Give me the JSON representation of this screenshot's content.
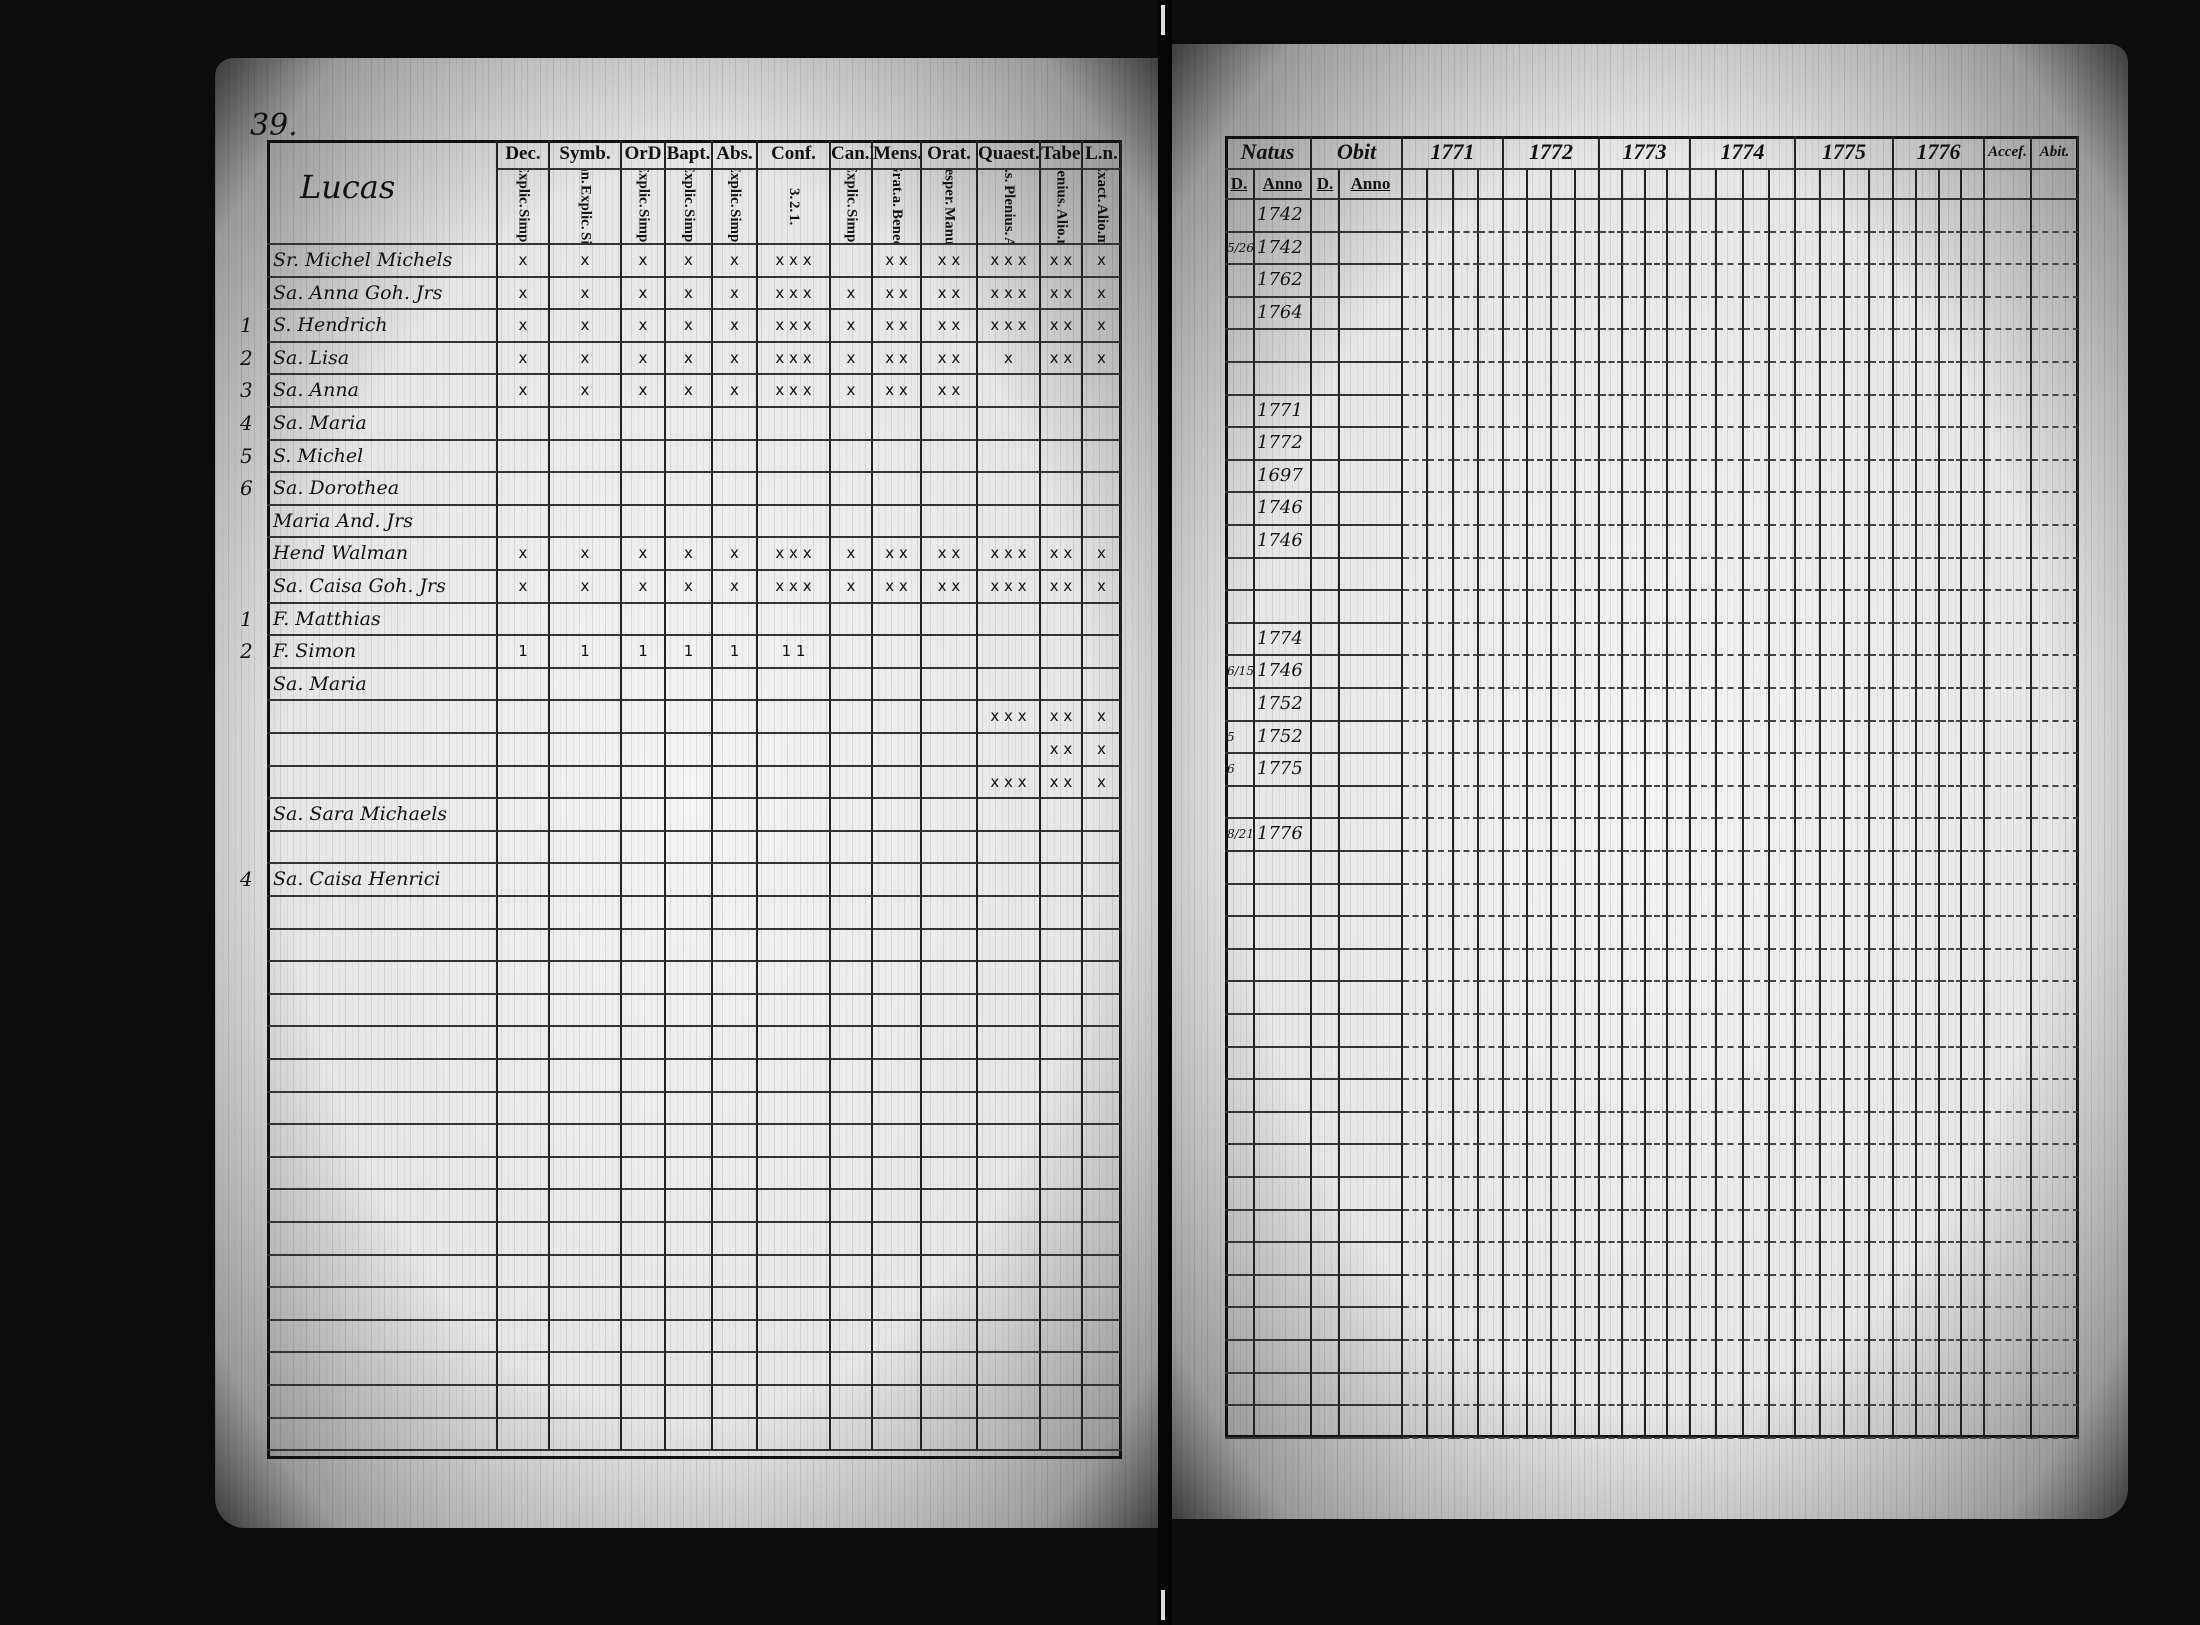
{
  "left_page": {
    "page_number": "39.",
    "title": "Lucas",
    "columns": [
      {
        "head": "Dec.",
        "sub": [
          "Explic.",
          "Simpl."
        ]
      },
      {
        "head": "Symb.",
        "sub": [
          "Athan.",
          "Explic.",
          "Simpl."
        ]
      },
      {
        "head": "OrD",
        "sub": [
          "Explic.",
          "Simpl."
        ]
      },
      {
        "head": "Bapt.",
        "sub": [
          "Explic.",
          "Simpl."
        ]
      },
      {
        "head": "Abs.",
        "sub": [
          "Explic.",
          "Simpl."
        ]
      },
      {
        "head": "Conf.",
        "sub": [
          "3.",
          "2.",
          "1."
        ]
      },
      {
        "head": "Can.D",
        "sub": [
          "Explic.",
          "Simpl."
        ]
      },
      {
        "head": "Mens.",
        "sub": [
          "Grat.a.",
          "Bened."
        ]
      },
      {
        "head": "Orat.",
        "sub": [
          "Vesper.",
          "Manut."
        ]
      },
      {
        "head": "Quaest.",
        "sub": [
          "Dictas.s.",
          "Plenius.",
          "Alio.m."
        ]
      },
      {
        "head": "Tabe.",
        "sub": [
          "Plenius.",
          "Alio.m."
        ]
      },
      {
        "head": "L.n.",
        "sub": [
          "Exact.",
          "Alio.m."
        ]
      }
    ],
    "rows": [
      {
        "no": "",
        "name": "Sr. Michel Michels",
        "marks": [
          "x",
          "x",
          "x",
          "x",
          "x",
          "x x x",
          "",
          "x x",
          "x x",
          "x x x",
          "x x",
          "x"
        ]
      },
      {
        "no": "",
        "name": "Sa. Anna Goh. Jrs",
        "marks": [
          "x",
          "x",
          "x",
          "x",
          "x",
          "x x x",
          "x",
          "x x",
          "x x",
          "x x x",
          "x x",
          "x"
        ]
      },
      {
        "no": "1",
        "name": "S. Hendrich",
        "marks": [
          "x",
          "x",
          "x",
          "x",
          "x",
          "x x x",
          "x",
          "x x",
          "x x",
          "x x x",
          "x x",
          "x"
        ]
      },
      {
        "no": "2",
        "name": "Sa. Lisa",
        "marks": [
          "x",
          "x",
          "x",
          "x",
          "x",
          "x x x",
          "x",
          "x x",
          "x x",
          "x",
          "x x",
          "x"
        ]
      },
      {
        "no": "3",
        "name": "Sa. Anna",
        "marks": [
          "x",
          "x",
          "x",
          "x",
          "x",
          "x x x",
          "x",
          "x x",
          "x x",
          "",
          "",
          ""
        ]
      },
      {
        "no": "4",
        "name": "Sa. Maria",
        "marks": [
          "",
          "",
          "",
          "",
          "",
          "",
          "",
          "",
          "",
          "",
          "",
          ""
        ]
      },
      {
        "no": "5",
        "name": "S. Michel",
        "marks": [
          "",
          "",
          "",
          "",
          "",
          "",
          "",
          "",
          "",
          "",
          "",
          ""
        ]
      },
      {
        "no": "6",
        "name": "Sa. Dorothea",
        "marks": [
          "",
          "",
          "",
          "",
          "",
          "",
          "",
          "",
          "",
          "",
          "",
          ""
        ]
      },
      {
        "no": "",
        "name": "Maria And. Jrs",
        "marks": [
          "",
          "",
          "",
          "",
          "",
          "",
          "",
          "",
          "",
          "",
          "",
          ""
        ]
      },
      {
        "no": "",
        "name": "Hend Walman",
        "marks": [
          "x",
          "x",
          "x",
          "x",
          "x",
          "x x x",
          "x",
          "x x",
          "x x",
          "x x x",
          "x x",
          "x"
        ]
      },
      {
        "no": "",
        "name": "Sa. Caisa Goh. Jrs",
        "marks": [
          "x",
          "x",
          "x",
          "x",
          "x",
          "x x x",
          "x",
          "x x",
          "x x",
          "x x x",
          "x x",
          "x"
        ]
      },
      {
        "no": "1",
        "name": "F. Matthias",
        "marks": [
          "",
          "",
          "",
          "",
          "",
          "",
          "",
          "",
          "",
          "",
          "",
          ""
        ]
      },
      {
        "no": "2",
        "name": "F. Simon",
        "marks": [
          "1",
          "1",
          "1",
          "1",
          "1",
          "1 1",
          "",
          "",
          "",
          "",
          "",
          ""
        ]
      },
      {
        "no": "",
        "name": "Sa. Maria",
        "marks": [
          "",
          "",
          "",
          "",
          "",
          "",
          "",
          "",
          "",
          "",
          "",
          ""
        ]
      },
      {
        "no": "",
        "name": "",
        "marks": [
          "",
          "",
          "",
          "",
          "",
          "",
          "",
          "",
          "",
          "x x x",
          "x x",
          "x"
        ]
      },
      {
        "no": "",
        "name": "",
        "marks": [
          "",
          "",
          "",
          "",
          "",
          "",
          "",
          "",
          "",
          "",
          "x x",
          "x"
        ]
      },
      {
        "no": "",
        "name": "",
        "marks": [
          "",
          "",
          "",
          "",
          "",
          "",
          "",
          "",
          "",
          "x x x",
          "x x",
          "x"
        ]
      },
      {
        "no": "",
        "name": "Sa. Sara Michaels",
        "marks": [
          "",
          "",
          "",
          "",
          "",
          "",
          "",
          "",
          "",
          "",
          "",
          ""
        ]
      },
      {
        "no": "",
        "name": "",
        "marks": [
          "",
          "",
          "",
          "",
          "",
          "",
          "",
          "",
          "",
          "",
          "",
          ""
        ]
      },
      {
        "no": "4",
        "name": "Sa. Caisa Henrici",
        "marks": [
          "",
          "",
          "",
          "",
          "",
          "",
          "",
          "",
          "",
          "",
          "",
          ""
        ]
      }
    ]
  },
  "right_page": {
    "groups": [
      {
        "head": "Natus",
        "sub": [
          "D.",
          "Anno"
        ]
      },
      {
        "head": "Obit",
        "sub": [
          "D.",
          "Anno"
        ]
      },
      {
        "head": "1771",
        "sub": [
          "",
          "",
          "",
          ""
        ]
      },
      {
        "head": "1772",
        "sub": [
          "",
          "",
          "",
          ""
        ]
      },
      {
        "head": "1773",
        "sub": [
          "",
          "",
          "",
          ""
        ]
      },
      {
        "head": "1774",
        "sub": [
          "",
          "",
          "",
          ""
        ]
      },
      {
        "head": "1775",
        "sub": [
          "",
          "",
          "",
          ""
        ]
      },
      {
        "head": "1776",
        "sub": [
          "",
          "",
          "",
          ""
        ]
      },
      {
        "head": "Accef.",
        "sub": [
          ""
        ]
      },
      {
        "head": "Abit.",
        "sub": [
          ""
        ]
      }
    ],
    "rows": [
      {
        "day": "",
        "year": "1742"
      },
      {
        "day": "5/26",
        "year": "1742"
      },
      {
        "day": "",
        "year": "1762"
      },
      {
        "day": "",
        "year": "1764"
      },
      {
        "day": "",
        "year": ""
      },
      {
        "day": "",
        "year": ""
      },
      {
        "day": "",
        "year": "1771"
      },
      {
        "day": "",
        "year": "1772"
      },
      {
        "day": "",
        "year": "1697"
      },
      {
        "day": "",
        "year": "1746"
      },
      {
        "day": "",
        "year": "1746"
      },
      {
        "day": "",
        "year": ""
      },
      {
        "day": "",
        "year": ""
      },
      {
        "day": "",
        "year": "1774"
      },
      {
        "day": "6/15",
        "year": "1746"
      },
      {
        "day": "",
        "year": "1752"
      },
      {
        "day": "5",
        "year": "1752"
      },
      {
        "day": "6",
        "year": "1775"
      },
      {
        "day": "",
        "year": ""
      },
      {
        "day": "8/21",
        "year": "1776"
      }
    ]
  }
}
